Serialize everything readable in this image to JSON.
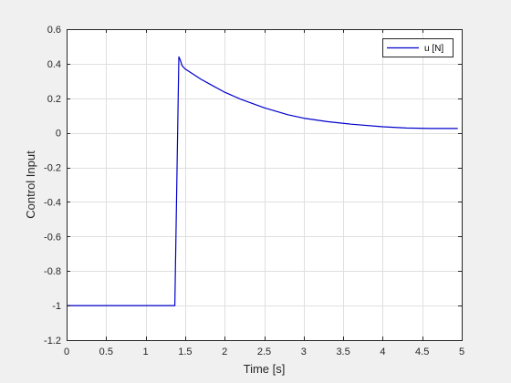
{
  "chart_data": {
    "type": "line",
    "title": "",
    "xlabel": "Time [s]",
    "ylabel": "Control Input",
    "xlim": [
      0,
      5
    ],
    "ylim": [
      -1.2,
      0.6
    ],
    "x_ticks": [
      0,
      0.5,
      1,
      1.5,
      2,
      2.5,
      3,
      3.5,
      4,
      4.5,
      5
    ],
    "x_tick_labels": [
      "0",
      "0.5",
      "1",
      "1.5",
      "2",
      "2.5",
      "3",
      "3.5",
      "4",
      "4.5",
      "5"
    ],
    "y_ticks": [
      -1.2,
      -1,
      -0.8,
      -0.6,
      -0.4,
      -0.2,
      0,
      0.2,
      0.4,
      0.6
    ],
    "y_tick_labels": [
      "-1.2",
      "-1",
      "-0.8",
      "-0.6",
      "-0.4",
      "-0.2",
      "0",
      "0.2",
      "0.4",
      "0.6"
    ],
    "grid": true,
    "legend_position": "top-right",
    "series": [
      {
        "name": "u [N]",
        "color": "#0000cc",
        "x": [
          0,
          1.37,
          1.42,
          1.44,
          1.46,
          1.5,
          1.6,
          1.7,
          1.8,
          2.0,
          2.2,
          2.5,
          2.8,
          3.0,
          3.3,
          3.6,
          4.0,
          4.3,
          4.6,
          4.95
        ],
        "y": [
          -1.0,
          -1.0,
          0.44,
          0.42,
          0.39,
          0.37,
          0.34,
          0.31,
          0.285,
          0.235,
          0.195,
          0.145,
          0.105,
          0.085,
          0.065,
          0.05,
          0.035,
          0.028,
          0.025,
          0.025
        ]
      }
    ]
  }
}
